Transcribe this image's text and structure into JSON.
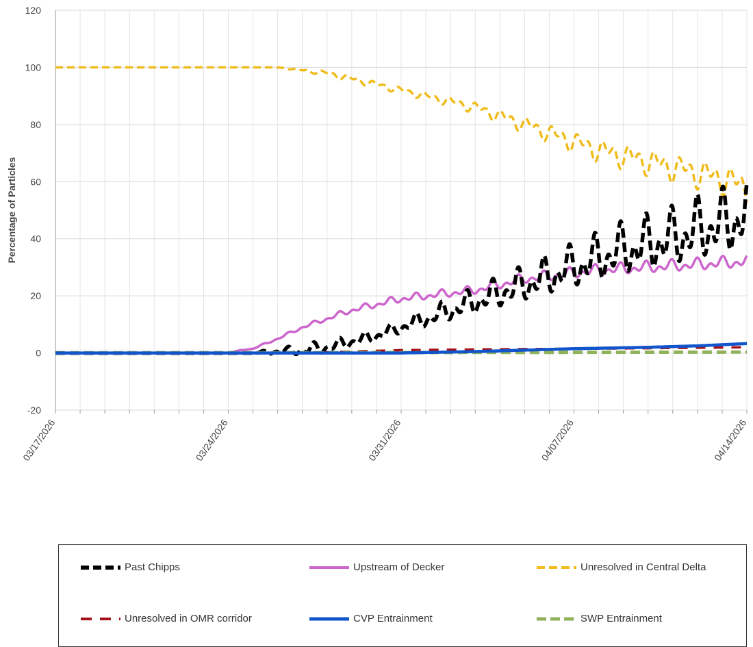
{
  "chart_data": {
    "type": "line",
    "ylabel": "Percentage of Particles",
    "ylim": [
      -20,
      120
    ],
    "yticks": [
      -20,
      0,
      20,
      40,
      60,
      80,
      100,
      120
    ],
    "xlim": [
      "2026-03-17",
      "2026-04-14"
    ],
    "xtick_labels": [
      "03/17/2026",
      "03/24/2026",
      "03/31/2026",
      "04/07/2026",
      "04/14/2026"
    ],
    "grid": true,
    "legend_position": "bottom",
    "series": [
      {
        "name": "Past Chipps",
        "color": "#000000",
        "style": "dashed",
        "points": [
          [
            "2026-03-17",
            0
          ],
          [
            "2026-03-25",
            0
          ],
          [
            "2026-03-26",
            0.5
          ],
          [
            "2026-03-27",
            1
          ],
          [
            "2026-03-28",
            2
          ],
          [
            "2026-03-29",
            4
          ],
          [
            "2026-03-30",
            6
          ],
          [
            "2026-03-31",
            9
          ],
          [
            "2026-04-01",
            12
          ],
          [
            "2026-04-02",
            15
          ],
          [
            "2026-04-03",
            18
          ],
          [
            "2026-04-04",
            21
          ],
          [
            "2026-04-05",
            24
          ],
          [
            "2026-04-06",
            27
          ],
          [
            "2026-04-07",
            30
          ],
          [
            "2026-04-08",
            33
          ],
          [
            "2026-04-09",
            36
          ],
          [
            "2026-04-10",
            38
          ],
          [
            "2026-04-11",
            40
          ],
          [
            "2026-04-12",
            43
          ],
          [
            "2026-04-13",
            45
          ],
          [
            "2026-04-14",
            48
          ]
        ]
      },
      {
        "name": "Upstream of Decker",
        "color": "#cc66cc",
        "style": "solid",
        "points": [
          [
            "2026-03-17",
            0
          ],
          [
            "2026-03-24",
            0
          ],
          [
            "2026-03-24.5",
            1
          ],
          [
            "2026-03-25",
            1.5
          ],
          [
            "2026-03-26",
            5
          ],
          [
            "2026-03-27",
            9
          ],
          [
            "2026-03-28",
            12
          ],
          [
            "2026-03-29",
            15
          ],
          [
            "2026-03-30",
            17
          ],
          [
            "2026-03-31",
            19
          ],
          [
            "2026-04-01",
            20
          ],
          [
            "2026-04-02",
            21
          ],
          [
            "2026-04-03",
            22
          ],
          [
            "2026-04-04",
            24
          ],
          [
            "2026-04-05",
            26
          ],
          [
            "2026-04-06",
            27
          ],
          [
            "2026-04-07",
            28
          ],
          [
            "2026-04-08",
            29
          ],
          [
            "2026-04-09",
            29.5
          ],
          [
            "2026-04-10",
            30
          ],
          [
            "2026-04-11",
            30.5
          ],
          [
            "2026-04-12",
            31
          ],
          [
            "2026-04-13",
            31.5
          ],
          [
            "2026-04-14",
            32
          ]
        ]
      },
      {
        "name": "Unresolved in Central Delta",
        "color": "#f0bc1c",
        "style": "dashed",
        "points": [
          [
            "2026-03-17",
            100
          ],
          [
            "2026-03-26",
            100
          ],
          [
            "2026-03-27",
            99
          ],
          [
            "2026-03-28",
            98
          ],
          [
            "2026-03-29",
            96
          ],
          [
            "2026-03-30",
            94
          ],
          [
            "2026-03-31",
            92
          ],
          [
            "2026-04-01",
            90
          ],
          [
            "2026-04-02",
            88
          ],
          [
            "2026-04-03",
            86
          ],
          [
            "2026-04-04",
            83
          ],
          [
            "2026-04-05",
            80
          ],
          [
            "2026-04-06",
            77
          ],
          [
            "2026-04-07",
            74
          ],
          [
            "2026-04-08",
            71
          ],
          [
            "2026-04-09",
            69
          ],
          [
            "2026-04-10",
            67
          ],
          [
            "2026-04-11",
            65
          ],
          [
            "2026-04-12",
            63
          ],
          [
            "2026-04-13",
            61
          ],
          [
            "2026-04-14",
            58
          ]
        ]
      },
      {
        "name": "Unresolved in OMR corridor",
        "color": "#a50f15",
        "style": "dashed",
        "points": [
          [
            "2026-03-17",
            0
          ],
          [
            "2026-03-27",
            0
          ],
          [
            "2026-03-31",
            1
          ],
          [
            "2026-04-04",
            1.3
          ],
          [
            "2026-04-09",
            1.6
          ],
          [
            "2026-04-14",
            2
          ]
        ]
      },
      {
        "name": "CVP Entrainment",
        "color": "#1155cc",
        "style": "solid",
        "points": [
          [
            "2026-03-17",
            0
          ],
          [
            "2026-03-31",
            0
          ],
          [
            "2026-04-03",
            0.5
          ],
          [
            "2026-04-05",
            1
          ],
          [
            "2026-04-07",
            1.5
          ],
          [
            "2026-04-10",
            2
          ],
          [
            "2026-04-12",
            2.5
          ],
          [
            "2026-04-14",
            3.3
          ]
        ]
      },
      {
        "name": "SWP Entrainment",
        "color": "#8fb25a",
        "style": "dashed",
        "points": [
          [
            "2026-03-17",
            0
          ],
          [
            "2026-04-14",
            0.3
          ]
        ]
      }
    ]
  },
  "legend": {
    "items": [
      {
        "label": "Past Chipps"
      },
      {
        "label": "Upstream of Decker"
      },
      {
        "label": "Unresolved in Central Delta"
      },
      {
        "label": "Unresolved in OMR corridor"
      },
      {
        "label": "CVP Entrainment"
      },
      {
        "label": "SWP Entrainment"
      }
    ]
  }
}
